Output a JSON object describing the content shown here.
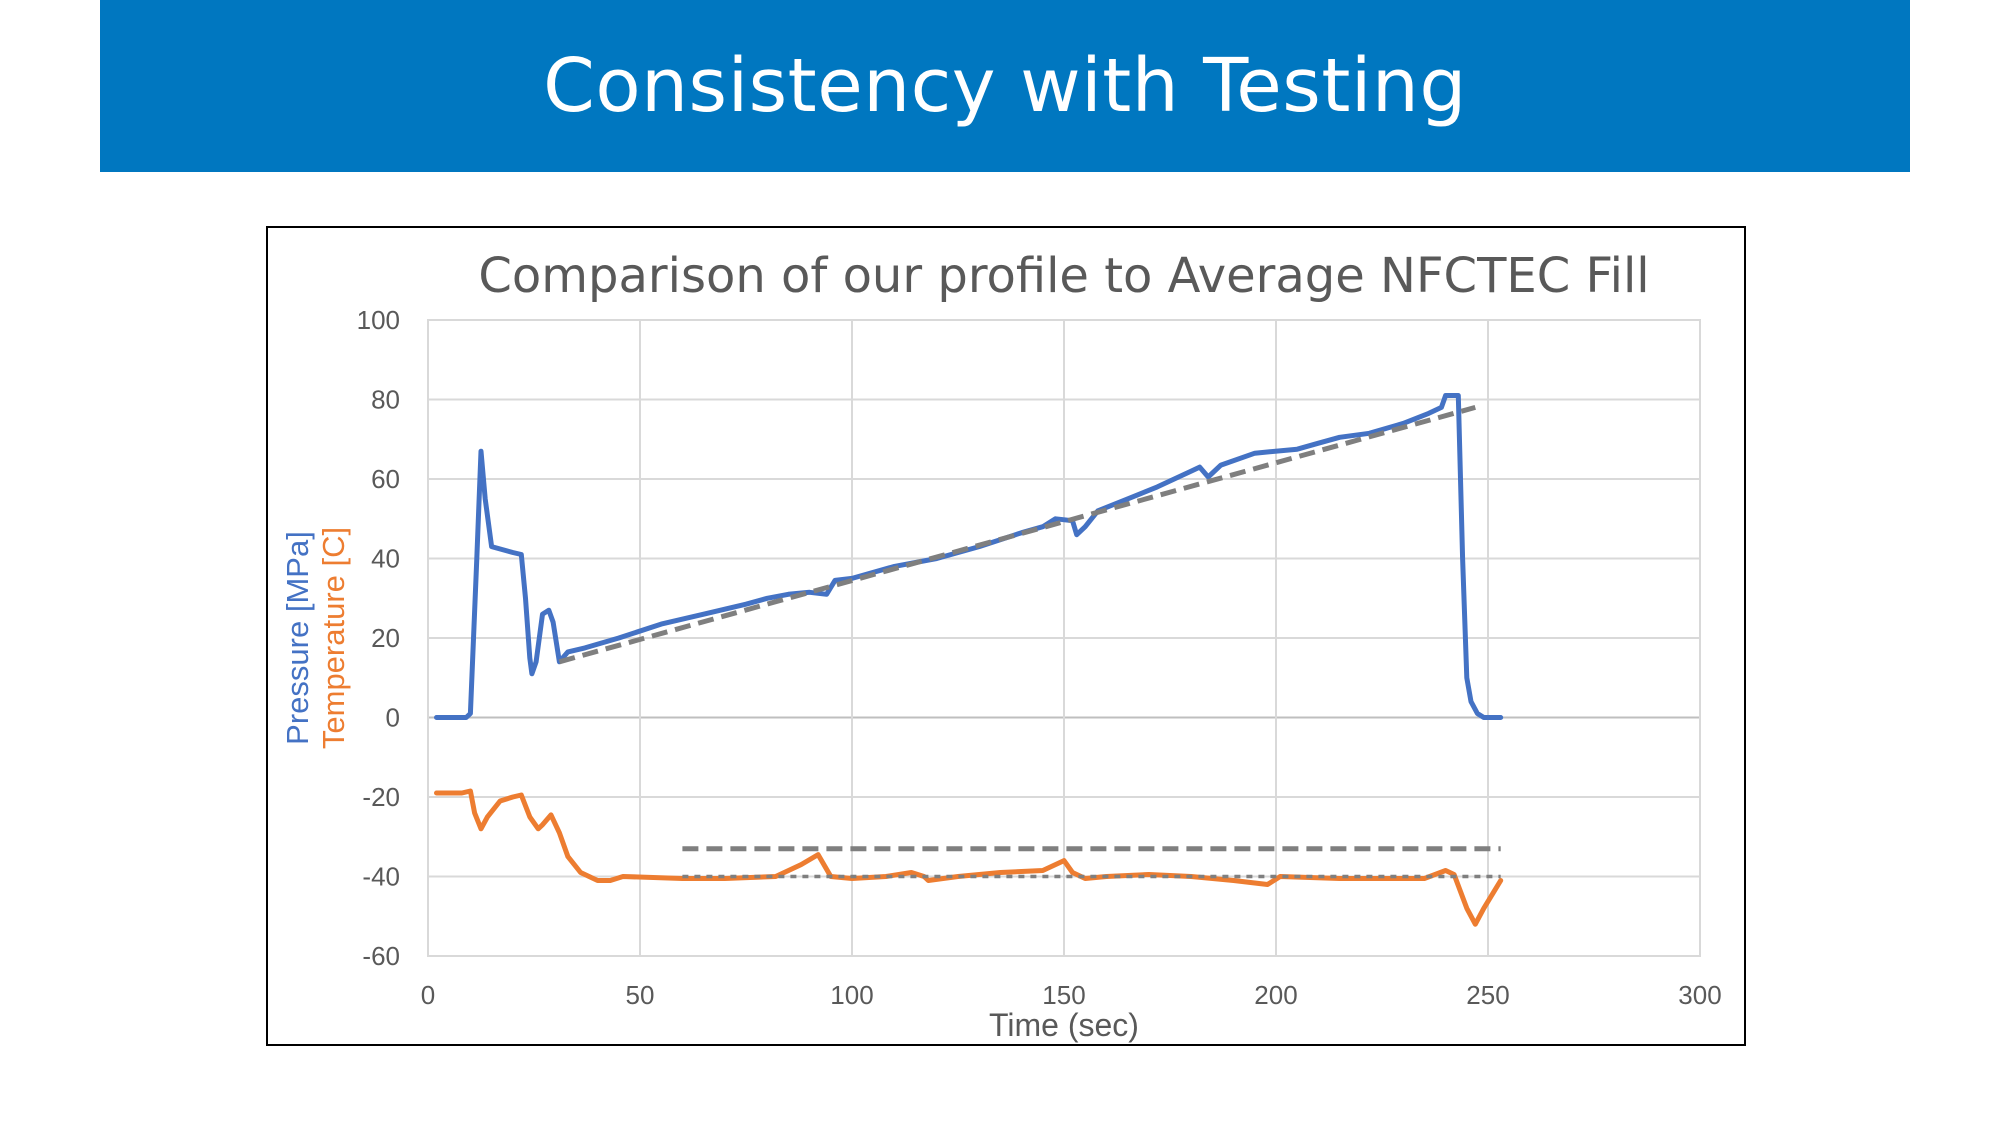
{
  "slide": {
    "title": "Consistency with Testing"
  },
  "colors": {
    "header_bg": "#0077c0",
    "pressure": "#4472c4",
    "temperature": "#ed7d31",
    "reference": "#7f7f7f",
    "grid": "#d9d9d9",
    "tick_text": "#595959"
  },
  "chart_data": {
    "type": "line",
    "title": "Comparison of our profile to Average NFCTEC Fill",
    "xlabel": "Time (sec)",
    "ylabel_pressure": "Pressure [MPa]",
    "ylabel_temperature": "Temperature [C]",
    "xlim": [
      0,
      300
    ],
    "ylim": [
      -60,
      100
    ],
    "xticks": [
      0,
      50,
      100,
      150,
      200,
      250,
      300
    ],
    "yticks": [
      -60,
      -40,
      -20,
      0,
      20,
      40,
      60,
      80,
      100
    ],
    "grid": true,
    "legend": "none",
    "series": [
      {
        "name": "Pressure [MPa]",
        "style": "solid",
        "color": "#4472c4",
        "points": [
          [
            2,
            0
          ],
          [
            9,
            0
          ],
          [
            10,
            1
          ],
          [
            11.5,
            40
          ],
          [
            12.5,
            67
          ],
          [
            13.5,
            55
          ],
          [
            15,
            43
          ],
          [
            20,
            41.5
          ],
          [
            22,
            41
          ],
          [
            23,
            30
          ],
          [
            24,
            15
          ],
          [
            24.5,
            11
          ],
          [
            25.5,
            14
          ],
          [
            27,
            26
          ],
          [
            28.5,
            27
          ],
          [
            29.5,
            24
          ],
          [
            31,
            14
          ],
          [
            33,
            16.5
          ],
          [
            37,
            17.5
          ],
          [
            45,
            20
          ],
          [
            55,
            23.5
          ],
          [
            65,
            26
          ],
          [
            75,
            28.5
          ],
          [
            80,
            30
          ],
          [
            85,
            31
          ],
          [
            90,
            31.5
          ],
          [
            94,
            31
          ],
          [
            96,
            34.5
          ],
          [
            100,
            35
          ],
          [
            110,
            38
          ],
          [
            120,
            40
          ],
          [
            130,
            43
          ],
          [
            140,
            46.5
          ],
          [
            145,
            48
          ],
          [
            148,
            50
          ],
          [
            152,
            49.5
          ],
          [
            153,
            46
          ],
          [
            155,
            48
          ],
          [
            158,
            52
          ],
          [
            165,
            55
          ],
          [
            172,
            58
          ],
          [
            180,
            62
          ],
          [
            182,
            63
          ],
          [
            184,
            60.5
          ],
          [
            187,
            63.5
          ],
          [
            195,
            66.5
          ],
          [
            205,
            67.5
          ],
          [
            210,
            69
          ],
          [
            215,
            70.5
          ],
          [
            222,
            71.5
          ],
          [
            230,
            74
          ],
          [
            236,
            76.5
          ],
          [
            239,
            78
          ],
          [
            240,
            81
          ],
          [
            243,
            81
          ],
          [
            244,
            40
          ],
          [
            245,
            10
          ],
          [
            246,
            4
          ],
          [
            247.5,
            1
          ],
          [
            249,
            0
          ],
          [
            253,
            0
          ]
        ]
      },
      {
        "name": "Temperature [C]",
        "style": "solid",
        "color": "#ed7d31",
        "points": [
          [
            2,
            -19
          ],
          [
            8,
            -19
          ],
          [
            10,
            -18.5
          ],
          [
            11,
            -24
          ],
          [
            12.5,
            -28
          ],
          [
            14,
            -25
          ],
          [
            17,
            -21
          ],
          [
            20,
            -20
          ],
          [
            22,
            -19.5
          ],
          [
            24,
            -25
          ],
          [
            26,
            -28
          ],
          [
            27,
            -27
          ],
          [
            29,
            -24.5
          ],
          [
            31,
            -29
          ],
          [
            33,
            -35
          ],
          [
            36,
            -39
          ],
          [
            40,
            -41
          ],
          [
            43,
            -41
          ],
          [
            46,
            -40
          ],
          [
            60,
            -40.5
          ],
          [
            70,
            -40.5
          ],
          [
            82,
            -40
          ],
          [
            88,
            -37
          ],
          [
            92,
            -34.5
          ],
          [
            95,
            -40
          ],
          [
            100,
            -40.5
          ],
          [
            108,
            -40
          ],
          [
            114,
            -39
          ],
          [
            117,
            -40
          ],
          [
            118,
            -41
          ],
          [
            125,
            -40
          ],
          [
            135,
            -39
          ],
          [
            145,
            -38.5
          ],
          [
            150,
            -36
          ],
          [
            152,
            -39
          ],
          [
            155,
            -40.5
          ],
          [
            160,
            -40
          ],
          [
            170,
            -39.5
          ],
          [
            180,
            -40
          ],
          [
            190,
            -41
          ],
          [
            198,
            -42
          ],
          [
            201,
            -40
          ],
          [
            215,
            -40.5
          ],
          [
            225,
            -40.5
          ],
          [
            235,
            -40.5
          ],
          [
            240,
            -38.5
          ],
          [
            242,
            -39.5
          ],
          [
            245,
            -48
          ],
          [
            247,
            -52
          ],
          [
            249,
            -48
          ],
          [
            253,
            -41
          ]
        ]
      },
      {
        "name": "Pressure reference",
        "style": "dashed",
        "color": "#7f7f7f",
        "points": [
          [
            31,
            14
          ],
          [
            247,
            78
          ]
        ]
      },
      {
        "name": "Temperature upper reference",
        "style": "dashed",
        "color": "#7f7f7f",
        "points": [
          [
            60,
            -33
          ],
          [
            253,
            -33
          ]
        ]
      },
      {
        "name": "Temperature lower reference",
        "style": "dotted",
        "color": "#7f7f7f",
        "points": [
          [
            60,
            -40
          ],
          [
            253,
            -40
          ]
        ]
      }
    ]
  }
}
